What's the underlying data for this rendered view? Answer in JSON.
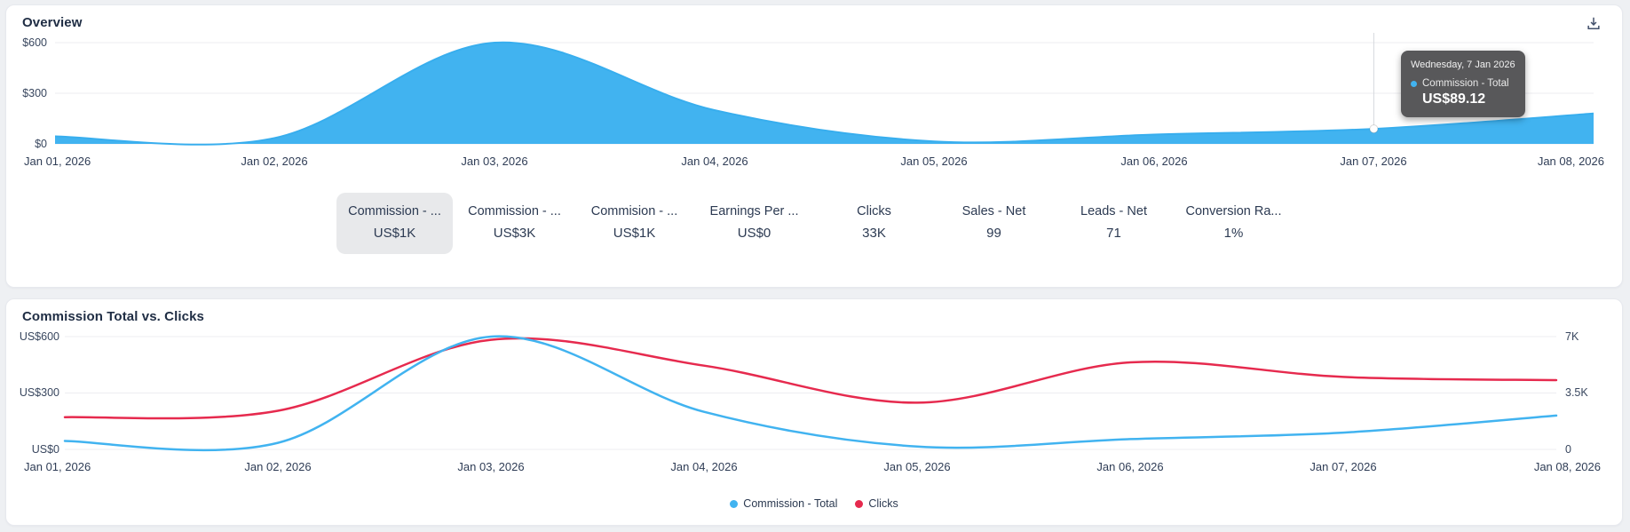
{
  "colors": {
    "accent_blue": "#41b3f0",
    "accent_red": "#e62a4e",
    "tooltip_bg": "#58585a",
    "selected_tab_bg": "#e8e9eb",
    "panel_bg": "#ffffff",
    "page_bg": "#eef0f3",
    "gridline": "#ededf1"
  },
  "overview": {
    "title": "Overview",
    "export_icon": "download-icon",
    "y_axis": [
      "$600",
      "$300",
      "$0"
    ],
    "x_axis": [
      "Jan 01, 2026",
      "Jan 02, 2026",
      "Jan 03, 2026",
      "Jan 04, 2026",
      "Jan 05, 2026",
      "Jan 06, 2026",
      "Jan 07, 2026",
      "Jan 08, 2026"
    ],
    "tooltip": {
      "date": "Wednesday, 7 Jan 2026",
      "series": "Commission - Total",
      "value": "US$89.12"
    },
    "metrics": [
      {
        "label": "Commission - ...",
        "value": "US$1K",
        "selected": true
      },
      {
        "label": "Commission - ...",
        "value": "US$3K",
        "selected": false
      },
      {
        "label": "Commision - ...",
        "value": "US$1K",
        "selected": false
      },
      {
        "label": "Earnings Per ...",
        "value": "US$0",
        "selected": false
      },
      {
        "label": "Clicks",
        "value": "33K",
        "selected": false
      },
      {
        "label": "Sales - Net",
        "value": "99",
        "selected": false
      },
      {
        "label": "Leads - Net",
        "value": "71",
        "selected": false
      },
      {
        "label": "Conversion Ra...",
        "value": "1%",
        "selected": false
      }
    ]
  },
  "comparison": {
    "title": "Commission Total vs. Clicks",
    "left_axis": [
      "US$600",
      "US$300",
      "US$0"
    ],
    "right_axis": [
      "7K",
      "3.5K",
      "0"
    ],
    "x_axis": [
      "Jan 01, 2026",
      "Jan 02, 2026",
      "Jan 03, 2026",
      "Jan 04, 2026",
      "Jan 05, 2026",
      "Jan 06, 2026",
      "Jan 07, 2026",
      "Jan 08, 2026"
    ],
    "legend": [
      {
        "label": "Commission - Total",
        "color": "#41b3f0"
      },
      {
        "label": "Clicks",
        "color": "#e62a4e"
      }
    ]
  },
  "chart_data": [
    {
      "type": "area",
      "title": "Overview",
      "x": [
        "Jan 01, 2026",
        "Jan 02, 2026",
        "Jan 03, 2026",
        "Jan 04, 2026",
        "Jan 05, 2026",
        "Jan 06, 2026",
        "Jan 07, 2026",
        "Jan 08, 2026"
      ],
      "series": [
        {
          "name": "Commission - Total",
          "color": "#41b3f0",
          "values": [
            45,
            35,
            600,
            200,
            15,
            55,
            89.12,
            180
          ]
        }
      ],
      "ylim": [
        0,
        600
      ],
      "yticks": [
        0,
        300,
        600
      ],
      "grid": true,
      "smooth": true,
      "highlight_point": {
        "x": "Jan 07, 2026",
        "value": 89.12,
        "tooltip": "US$89.12"
      }
    },
    {
      "type": "line",
      "title": "Commission Total vs. Clicks",
      "x": [
        "Jan 01, 2026",
        "Jan 02, 2026",
        "Jan 03, 2026",
        "Jan 04, 2026",
        "Jan 05, 2026",
        "Jan 06, 2026",
        "Jan 07, 2026",
        "Jan 08, 2026"
      ],
      "series": [
        {
          "name": "Commission - Total",
          "yaxis": "left",
          "color": "#41b3f0",
          "values": [
            45,
            35,
            600,
            200,
            15,
            55,
            89.12,
            180
          ]
        },
        {
          "name": "Clicks",
          "yaxis": "right",
          "color": "#e62a4e",
          "values": [
            2000,
            2400,
            6800,
            5200,
            2900,
            5400,
            4500,
            4300
          ]
        }
      ],
      "left_ylim": [
        0,
        600
      ],
      "left_yticks": [
        0,
        300,
        600
      ],
      "right_ylim": [
        0,
        7000
      ],
      "right_yticks": [
        0,
        3500,
        7000
      ],
      "grid": true,
      "smooth": true,
      "legend_position": "bottom"
    }
  ]
}
